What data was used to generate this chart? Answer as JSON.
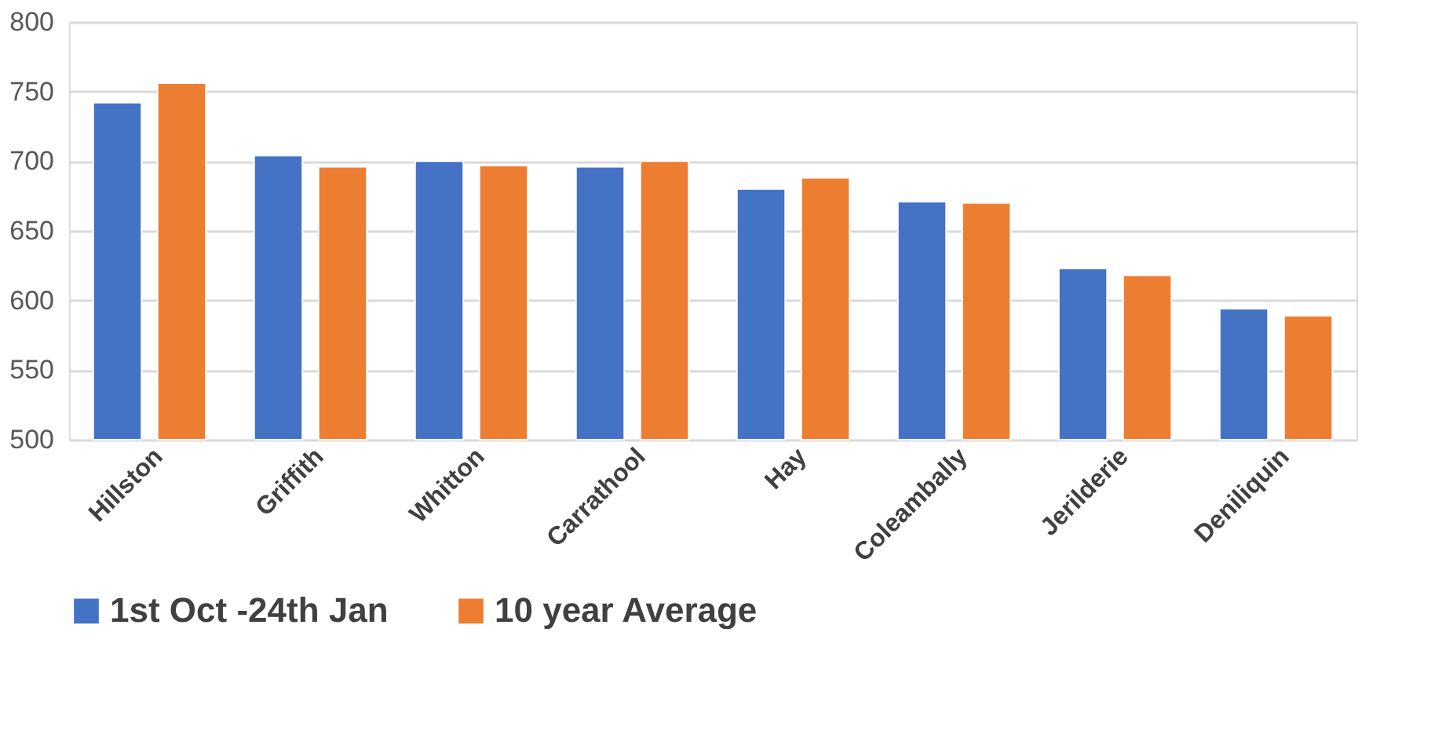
{
  "chart_data": {
    "type": "bar",
    "categories": [
      "Hillston",
      "Griffith",
      "Whitton",
      "Carrathool",
      "Hay",
      "Coleambally",
      "Jerilderie",
      "Deniliquin"
    ],
    "series": [
      {
        "name": "1st Oct -24th Jan",
        "color": "#4472c4",
        "values": [
          742,
          704,
          700,
          696,
          680,
          671,
          623,
          594
        ]
      },
      {
        "name": "10 year Average",
        "color": "#ed7d31",
        "values": [
          756,
          696,
          697,
          700,
          688,
          670,
          618,
          589
        ]
      }
    ],
    "ylim": [
      500,
      800
    ],
    "yticks": [
      500,
      550,
      600,
      650,
      700,
      750,
      800
    ],
    "grid": "y",
    "legend": "bottom"
  }
}
